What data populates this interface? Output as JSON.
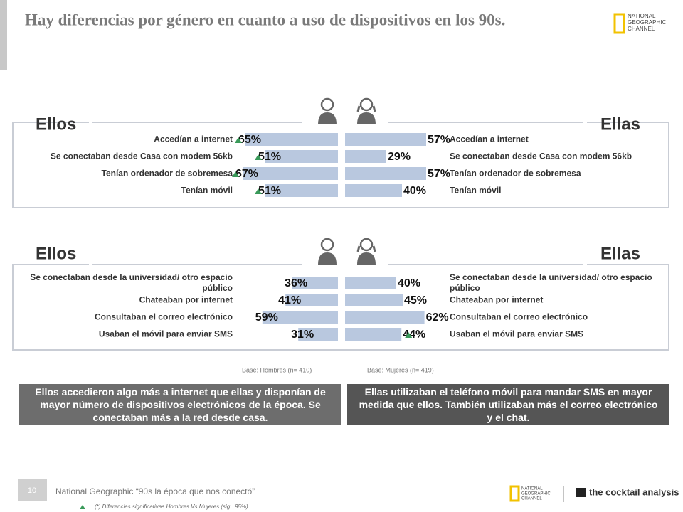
{
  "title": "Hay diferencias por género en cuanto a uso de dispositivos en los 90s.",
  "logo_lines": [
    "NATIONAL",
    "GEOGRAPHIC",
    "CHANNEL"
  ],
  "chart_data": [
    {
      "type": "butterfly",
      "categories": [
        "Accedían a internet",
        "Se conectaban desde Casa con modem 56kb",
        "Tenían ordenador de sobremesa",
        "Tenían móvil"
      ],
      "series": [
        {
          "name": "Ellos",
          "color": "#b9c8df",
          "values": [
            65,
            51,
            67,
            51
          ],
          "value_labels": [
            "65%",
            "51%",
            "67%",
            "51%"
          ],
          "significant": [
            true,
            true,
            true,
            true
          ]
        },
        {
          "name": "Ellas",
          "color": "#b9c8df",
          "values": [
            57,
            29,
            57,
            40
          ],
          "value_labels": [
            "57%",
            "29%",
            "57%",
            "40%"
          ],
          "significant": [
            false,
            false,
            false,
            false
          ]
        }
      ]
    },
    {
      "type": "butterfly",
      "categories": [
        "Se conectaban desde la universidad/ otro espacio público",
        "Chateaban por internet",
        "Consultaban el correo electrónico",
        "Usaban el móvil para enviar SMS"
      ],
      "series": [
        {
          "name": "Ellos",
          "color": "#b9c8df",
          "values": [
            36,
            41,
            59,
            31
          ],
          "value_labels": [
            "36%",
            "41%",
            "59%",
            "31%"
          ],
          "significant": [
            false,
            false,
            false,
            false
          ]
        },
        {
          "name": "Ellas",
          "color": "#b9c8df",
          "values": [
            40,
            45,
            62,
            44
          ],
          "value_labels": [
            "40%",
            "45%",
            "62%",
            "44%"
          ],
          "significant": [
            false,
            false,
            false,
            true
          ]
        }
      ]
    }
  ],
  "bases": [
    "Base: Hombres (n= 410)",
    "Base: Mujeres (n= 419)"
  ],
  "conclusions": [
    "Ellos accedieron algo más a internet que ellas y disponían de mayor número de dispositivos electrónicos de la época. Se conectaban más  a la red desde casa.",
    "Ellas utilizaban el teléfono móvil para mandar SMS en mayor medida que ellos. También utilizaban más el correo electrónico y el chat."
  ],
  "footer": {
    "page": "10",
    "source": "National Geographic “90s la época que nos conectó”",
    "note": "(*) Diferencias significativas Hombres Vs Mujeres (sig.. 95%)",
    "brand": "the cocktail analysis"
  }
}
